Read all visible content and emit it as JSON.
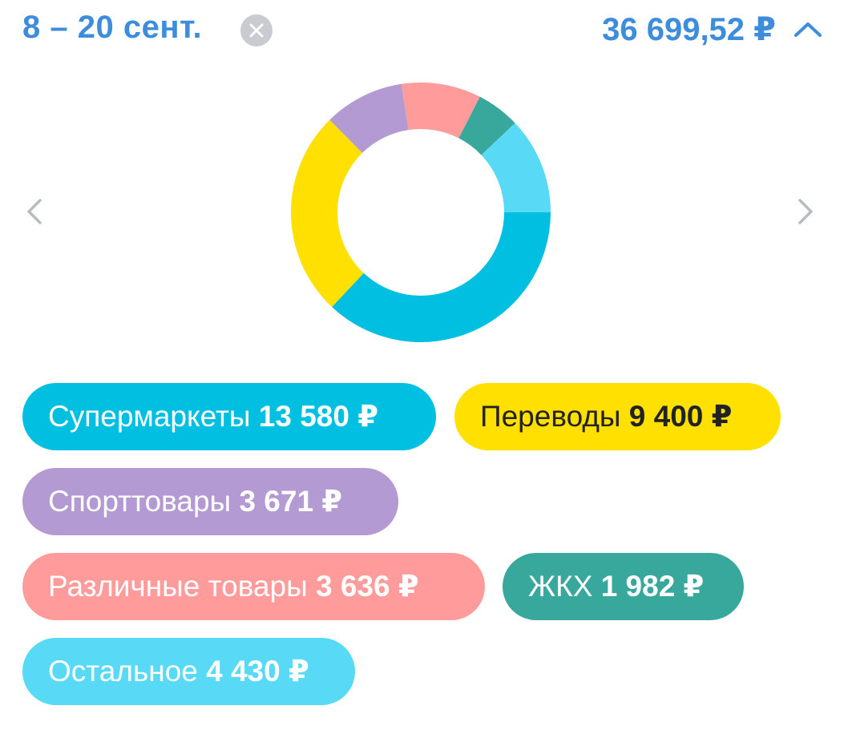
{
  "header": {
    "period": "8 – 20 сент.",
    "total": "36 699,52 ₽"
  },
  "chart_data": {
    "type": "pie",
    "categories": [
      "Супермаркеты",
      "Переводы",
      "Спорттовары",
      "Различные товары",
      "ЖКХ",
      "Остальное"
    ],
    "values": [
      13580,
      9400,
      3671,
      3636,
      1982,
      4430
    ],
    "colors": [
      "#00bfe0",
      "#ffe000",
      "#b39ad2",
      "#ff9b9b",
      "#38a89d",
      "#58daf7"
    ]
  },
  "categories": [
    {
      "name": "Супермаркеты",
      "amount": "13 580 ₽",
      "color": "#00bfe0"
    },
    {
      "name": "Переводы",
      "amount": "9 400 ₽",
      "color": "#ffe000"
    },
    {
      "name": "Спорттовары",
      "amount": "3 671 ₽",
      "color": "#b39ad2"
    },
    {
      "name": "Различные товары",
      "amount": "3 636 ₽",
      "color": "#ff9b9b"
    },
    {
      "name": "ЖКХ",
      "amount": "1 982 ₽",
      "color": "#38a89d"
    },
    {
      "name": "Остальное",
      "amount": "4 430 ₽",
      "color": "#58daf7"
    }
  ],
  "colors": {
    "accent": "#3d8ddc",
    "clear_button": "#c8cbcf",
    "arrow": "#b8bcc1"
  },
  "icons": {
    "clear": "close-icon",
    "collapse": "chevron-up-icon",
    "prev": "chevron-left-icon",
    "next": "chevron-right-icon"
  }
}
